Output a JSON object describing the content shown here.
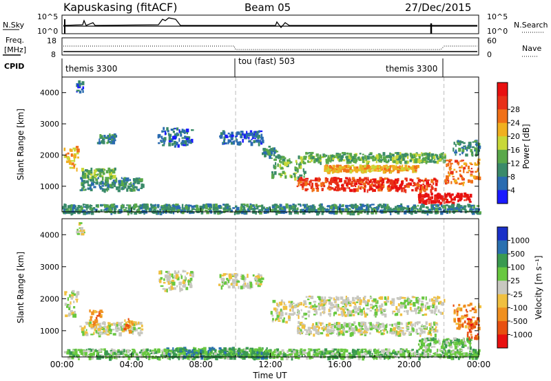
{
  "header": {
    "station": "Kapuskasing (fitACF)",
    "beam": "Beam 05",
    "date": "27/Dec/2015"
  },
  "noise_panel": {
    "left_label": "N.Sky",
    "right_label": "N.Search",
    "left_ticks": [
      "10^5",
      "10^0"
    ],
    "right_ticks": [
      "10^5",
      "10^0"
    ]
  },
  "freq_panel": {
    "left_label_1": "Freq.",
    "left_label_2": "[MHz]",
    "right_label": "Nave",
    "left_ticks": [
      "18",
      "8"
    ],
    "right_ticks": [
      "60",
      "0"
    ]
  },
  "cpid": {
    "label": "CPID",
    "segments": [
      {
        "name": "themis 3300",
        "start_h": 0,
        "end_h": 10
      },
      {
        "name": "tou (fast) 503",
        "start_h": 10,
        "end_h": 22
      },
      {
        "name": "themis 3300",
        "start_h": 22,
        "end_h": 24
      }
    ]
  },
  "x_axis": {
    "label": "Time UT",
    "range_h": [
      0,
      24
    ],
    "ticks": [
      "00:00",
      "04:00",
      "08:00",
      "12:00",
      "16:00",
      "20:00",
      "00:00"
    ]
  },
  "power_panel": {
    "ylabel": "Slant Range [km]",
    "yticks": [
      "1000",
      "2000",
      "3000",
      "4000"
    ],
    "colorbar_label": "Power [dB]",
    "colorbar_ticks": [
      "4",
      "8",
      "12",
      "16",
      "20",
      "24",
      "28"
    ],
    "colors": [
      "#1a1aff",
      "#2a6bb0",
      "#3a8a6a",
      "#5aa84a",
      "#c8d838",
      "#f0b020",
      "#f07018",
      "#e83018",
      "#e81010"
    ]
  },
  "velocity_panel": {
    "ylabel": "Slant Range [km]",
    "yticks": [
      "1000",
      "2000",
      "3000",
      "4000"
    ],
    "colorbar_label": "Velocity [m s⁻¹]",
    "colorbar_ticks": [
      "1000",
      "500",
      "100",
      "25",
      "-25",
      "-100",
      "-500",
      "-1000"
    ],
    "colors": [
      "#1a30c8",
      "#2a70b0",
      "#3a9a50",
      "#68c840",
      "#c8c8c0",
      "#f0c040",
      "#f09020",
      "#e85010",
      "#e81010"
    ]
  },
  "chart_data": {
    "type": "heatmap",
    "xlabel": "Time UT",
    "ylabel": "Slant Range [km]",
    "xlim_h": [
      0,
      24
    ],
    "ylim_km": [
      180,
      4500
    ],
    "power_blobs": [
      {
        "t0": 0.1,
        "t1": 0.9,
        "r0": 1500,
        "r1": 2300,
        "level": 5
      },
      {
        "t0": 0.8,
        "t1": 1.2,
        "r0": 4000,
        "r1": 4400,
        "level": 1
      },
      {
        "t0": 1.0,
        "t1": 4.6,
        "r0": 900,
        "r1": 1300,
        "level": 2
      },
      {
        "t0": 1.1,
        "t1": 3.0,
        "r0": 1300,
        "r1": 1600,
        "level": 3
      },
      {
        "t0": 2.0,
        "t1": 3.0,
        "r0": 2400,
        "r1": 2700,
        "level": 2
      },
      {
        "t0": 5.5,
        "t1": 7.5,
        "r0": 2300,
        "r1": 2900,
        "level": 1
      },
      {
        "t0": 9.0,
        "t1": 11.5,
        "r0": 2400,
        "r1": 2800,
        "level": 1
      },
      {
        "t0": 11.5,
        "t1": 12.5,
        "r0": 2000,
        "r1": 2300,
        "level": 2
      },
      {
        "t0": 12.0,
        "t1": 14.0,
        "r0": 1300,
        "r1": 2000,
        "level": 3
      },
      {
        "t0": 13.5,
        "t1": 21.5,
        "r0": 900,
        "r1": 1300,
        "level": 7
      },
      {
        "t0": 15.0,
        "t1": 20.5,
        "r0": 1500,
        "r1": 1700,
        "level": 5
      },
      {
        "t0": 14.0,
        "t1": 22.0,
        "r0": 1800,
        "r1": 2100,
        "level": 3
      },
      {
        "t0": 20.5,
        "t1": 23.5,
        "r0": 500,
        "r1": 800,
        "level": 8
      },
      {
        "t0": 22.0,
        "t1": 24.0,
        "r0": 1100,
        "r1": 1900,
        "level": 6
      },
      {
        "t0": 22.5,
        "t1": 24.0,
        "r0": 2000,
        "r1": 2500,
        "level": 2
      },
      {
        "t0": 0.0,
        "t1": 24.0,
        "r0": 180,
        "r1": 450,
        "level": 2
      }
    ],
    "velocity_blobs": [
      {
        "t0": 0.1,
        "t1": 0.9,
        "r0": 1500,
        "r1": 2300,
        "level": 4
      },
      {
        "t0": 0.8,
        "t1": 1.2,
        "r0": 4000,
        "r1": 4400,
        "level": 4
      },
      {
        "t0": 1.0,
        "t1": 4.6,
        "r0": 900,
        "r1": 1300,
        "level": 4
      },
      {
        "t0": 1.5,
        "t1": 2.2,
        "r0": 1200,
        "r1": 1700,
        "level": 6
      },
      {
        "t0": 3.5,
        "t1": 4.0,
        "r0": 1000,
        "r1": 1400,
        "level": 6
      },
      {
        "t0": 5.5,
        "t1": 7.5,
        "r0": 2300,
        "r1": 2900,
        "level": 4
      },
      {
        "t0": 9.0,
        "t1": 11.5,
        "r0": 2400,
        "r1": 2800,
        "level": 4
      },
      {
        "t0": 12.0,
        "t1": 14.0,
        "r0": 1300,
        "r1": 2000,
        "level": 4
      },
      {
        "t0": 13.5,
        "t1": 21.5,
        "r0": 900,
        "r1": 1300,
        "level": 4
      },
      {
        "t0": 14.0,
        "t1": 22.0,
        "r0": 1500,
        "r1": 2100,
        "level": 4
      },
      {
        "t0": 20.5,
        "t1": 23.5,
        "r0": 500,
        "r1": 800,
        "level": 3
      },
      {
        "t0": 22.5,
        "t1": 24.0,
        "r0": 1100,
        "r1": 1900,
        "level": 6
      },
      {
        "t0": 23.3,
        "t1": 24.0,
        "r0": 800,
        "r1": 1400,
        "level": 7
      },
      {
        "t0": 0.0,
        "t1": 24.0,
        "r0": 180,
        "r1": 450,
        "level": 3
      },
      {
        "t0": 6.0,
        "t1": 12.0,
        "r0": 180,
        "r1": 500,
        "level": 2
      }
    ]
  }
}
